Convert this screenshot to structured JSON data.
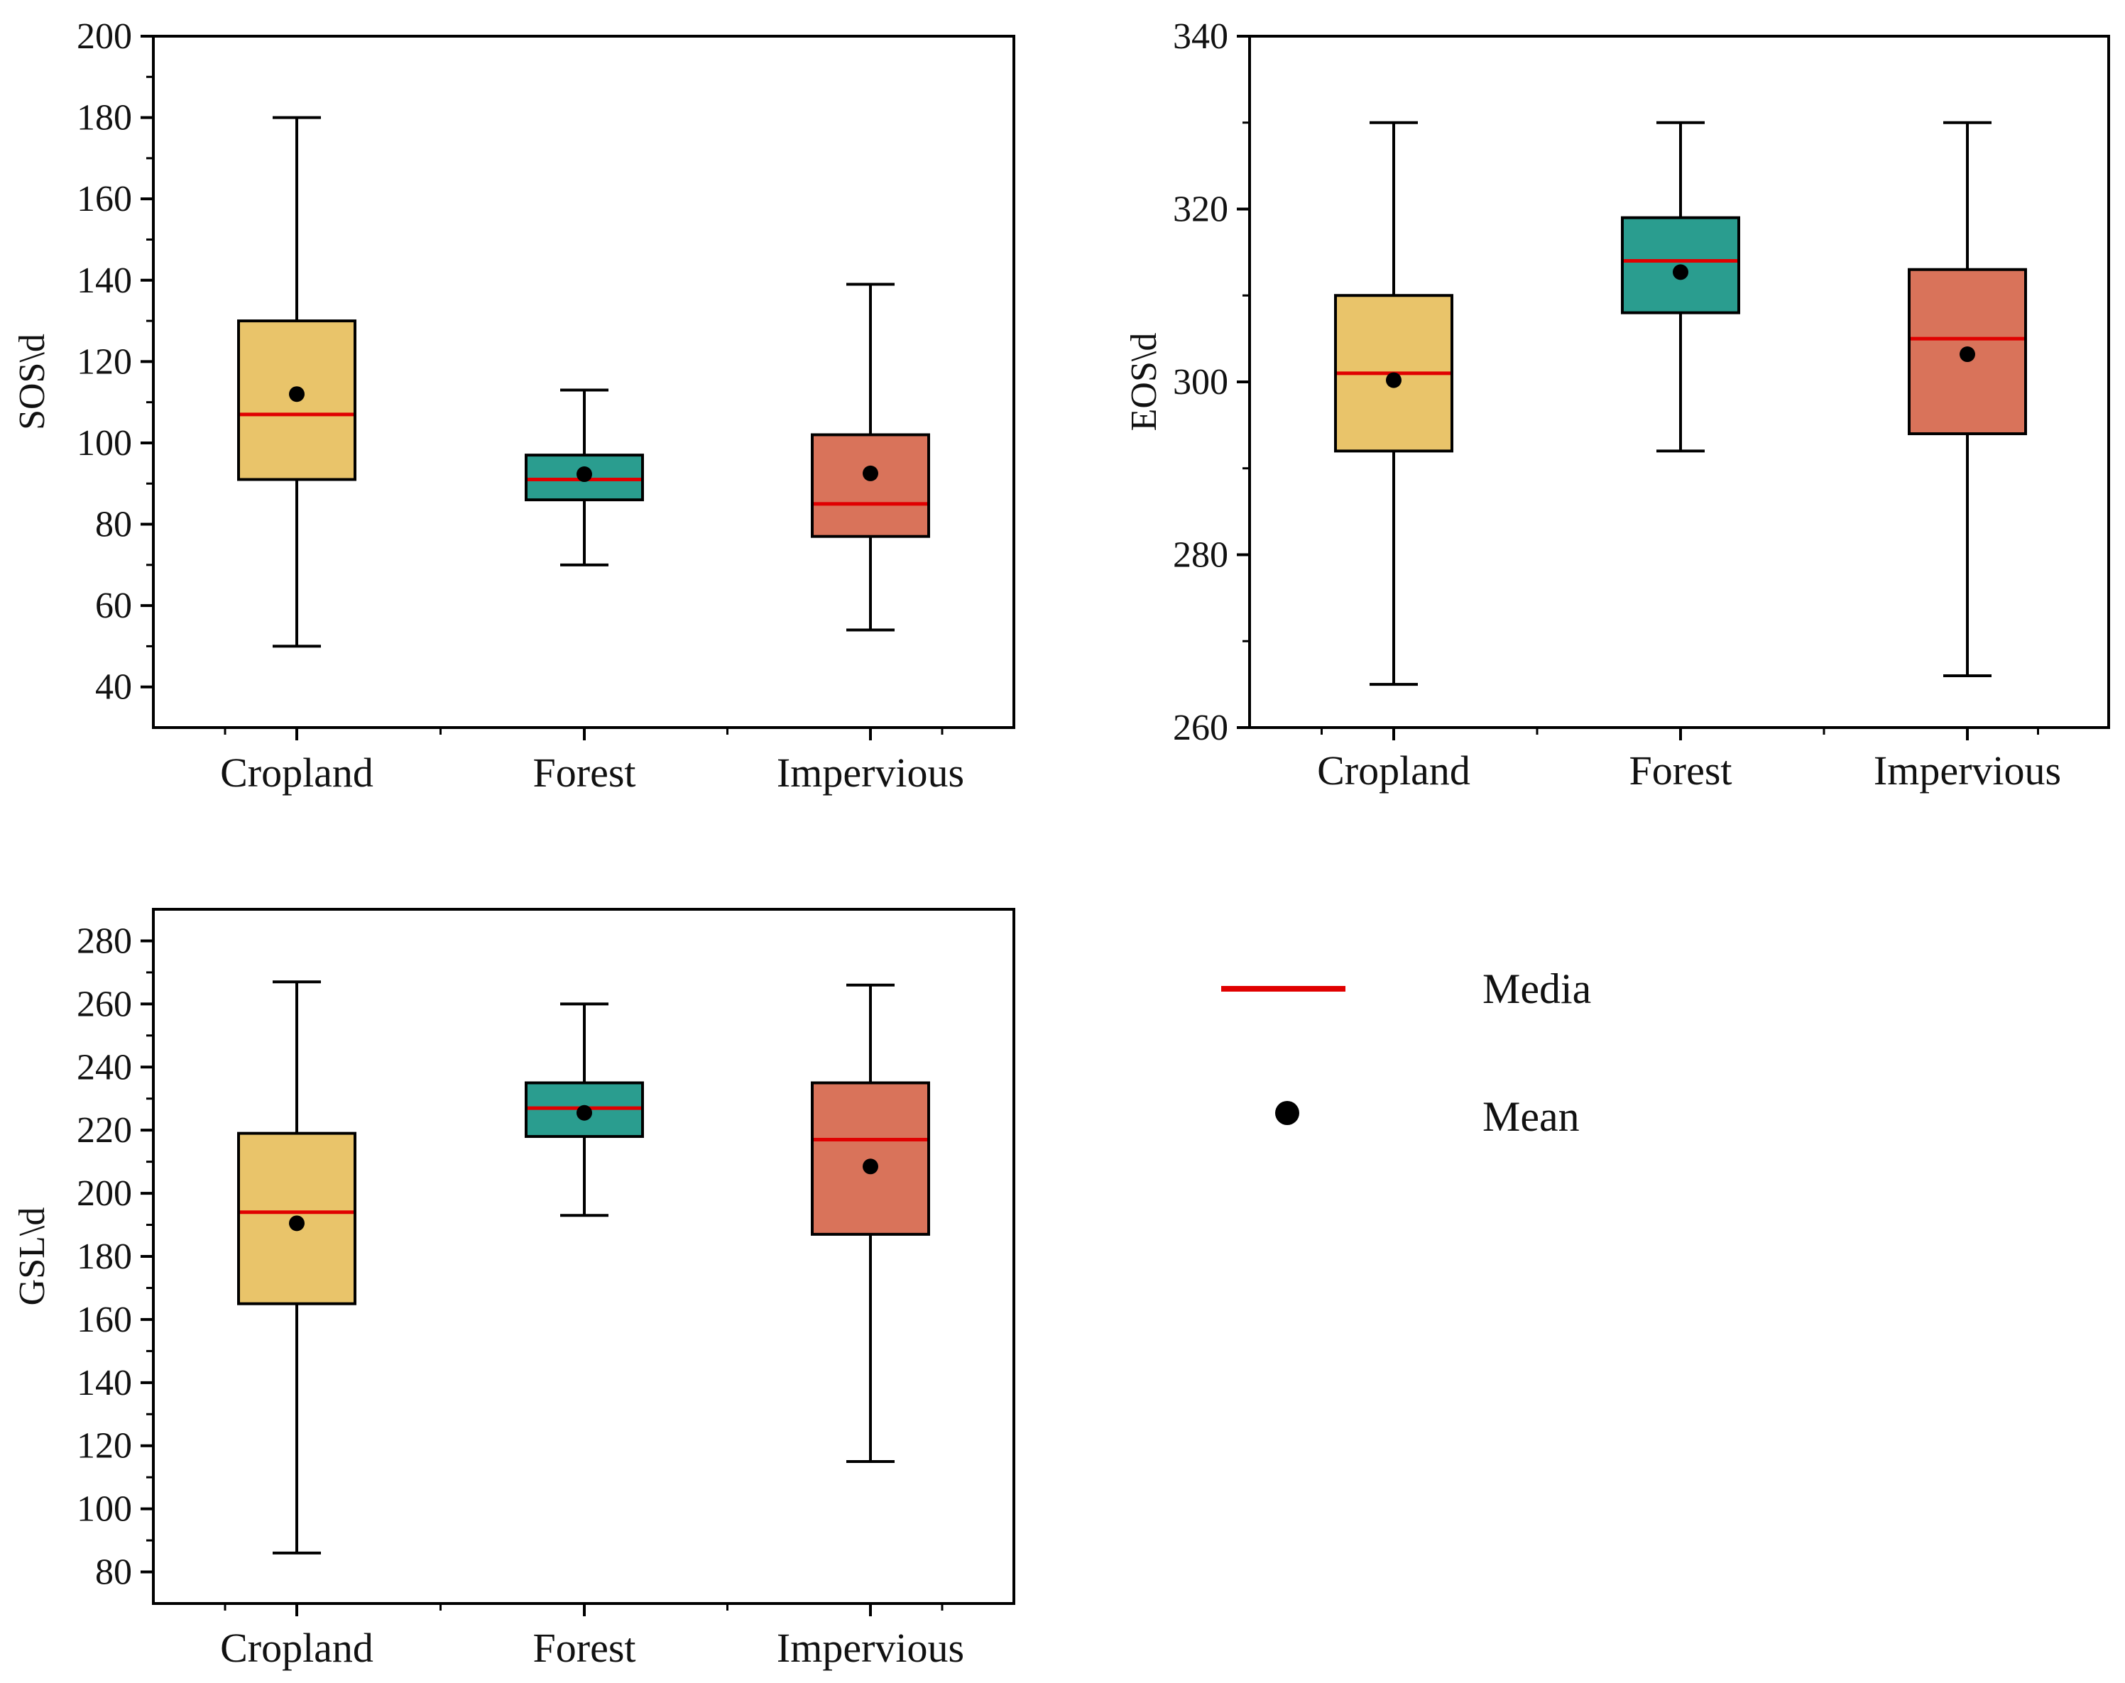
{
  "chart_data": [
    {
      "type": "boxplot",
      "title": "",
      "xlabel": "",
      "ylabel": "SOS\\d",
      "ylim": [
        30,
        200
      ],
      "yticks": [
        40,
        60,
        80,
        100,
        120,
        140,
        160,
        180,
        200
      ],
      "categories": [
        "Cropland",
        "Forest",
        "Impervious"
      ],
      "boxes": [
        {
          "min": 50,
          "q1": 91,
          "median": 107,
          "q3": 130,
          "max": 180,
          "mean": 112,
          "color": "#E9C46A"
        },
        {
          "min": 70,
          "q1": 86,
          "median": 91,
          "q3": 97,
          "max": 113,
          "mean": 92.3,
          "color": "#2A9D8F"
        },
        {
          "min": 54,
          "q1": 77,
          "median": 85,
          "q3": 102,
          "max": 139,
          "mean": 92.5,
          "color": "#D9735A"
        }
      ]
    },
    {
      "type": "boxplot",
      "title": "",
      "xlabel": "",
      "ylabel": "EOS\\d",
      "ylim": [
        260,
        340
      ],
      "yticks": [
        260,
        280,
        300,
        320,
        340
      ],
      "categories": [
        "Cropland",
        "Forest",
        "Impervious"
      ],
      "boxes": [
        {
          "min": 265,
          "q1": 292,
          "median": 301,
          "q3": 310,
          "max": 330,
          "mean": 300.2,
          "color": "#E9C46A"
        },
        {
          "min": 292,
          "q1": 308,
          "median": 314,
          "q3": 319,
          "max": 330,
          "mean": 312.7,
          "color": "#2A9D8F"
        },
        {
          "min": 266,
          "q1": 294,
          "median": 305,
          "q3": 313,
          "max": 330,
          "mean": 303.2,
          "color": "#D9735A"
        }
      ]
    },
    {
      "type": "boxplot",
      "title": "",
      "xlabel": "",
      "ylabel": "GSL\\d",
      "ylim": [
        70,
        290
      ],
      "yticks": [
        80,
        100,
        120,
        140,
        160,
        180,
        200,
        220,
        240,
        260,
        280
      ],
      "categories": [
        "Cropland",
        "Forest",
        "Impervious"
      ],
      "boxes": [
        {
          "min": 86,
          "q1": 165,
          "median": 194,
          "q3": 219,
          "max": 267,
          "mean": 190.5,
          "color": "#E9C46A"
        },
        {
          "min": 193,
          "q1": 218,
          "median": 227,
          "q3": 235,
          "max": 260,
          "mean": 225.5,
          "color": "#2A9D8F"
        },
        {
          "min": 115,
          "q1": 187,
          "median": 217,
          "q3": 235,
          "max": 266,
          "mean": 208.5,
          "color": "#D9735A"
        }
      ]
    }
  ],
  "legend": {
    "median_label": "Media",
    "mean_label": "Mean",
    "median_color": "#E00000",
    "mean_color": "#000000"
  }
}
